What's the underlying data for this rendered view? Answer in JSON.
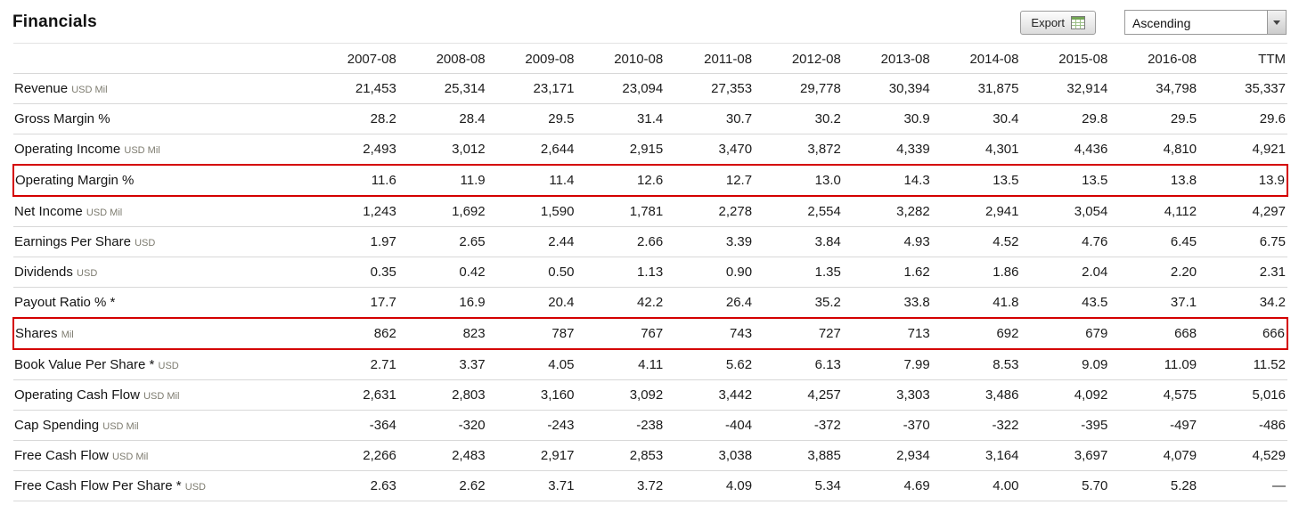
{
  "page": {
    "title": "Financials"
  },
  "toolbar": {
    "export_label": "Export",
    "sort_value": "Ascending"
  },
  "colors": {
    "highlight_border": "#d40000",
    "unit_text": "#7d7b6f",
    "row_divider": "#d8d8d8"
  },
  "table": {
    "columns": [
      "2007-08",
      "2008-08",
      "2009-08",
      "2010-08",
      "2011-08",
      "2012-08",
      "2013-08",
      "2014-08",
      "2015-08",
      "2016-08",
      "TTM"
    ],
    "rows": [
      {
        "label": "Revenue",
        "unit": "USD Mil",
        "highlighted": false,
        "values": [
          "21,453",
          "25,314",
          "23,171",
          "23,094",
          "27,353",
          "29,778",
          "30,394",
          "31,875",
          "32,914",
          "34,798",
          "35,337"
        ]
      },
      {
        "label": "Gross Margin %",
        "unit": "",
        "highlighted": false,
        "values": [
          "28.2",
          "28.4",
          "29.5",
          "31.4",
          "30.7",
          "30.2",
          "30.9",
          "30.4",
          "29.8",
          "29.5",
          "29.6"
        ]
      },
      {
        "label": "Operating Income",
        "unit": "USD Mil",
        "highlighted": false,
        "values": [
          "2,493",
          "3,012",
          "2,644",
          "2,915",
          "3,470",
          "3,872",
          "4,339",
          "4,301",
          "4,436",
          "4,810",
          "4,921"
        ]
      },
      {
        "label": "Operating Margin %",
        "unit": "",
        "highlighted": true,
        "values": [
          "11.6",
          "11.9",
          "11.4",
          "12.6",
          "12.7",
          "13.0",
          "14.3",
          "13.5",
          "13.5",
          "13.8",
          "13.9"
        ]
      },
      {
        "label": "Net Income",
        "unit": "USD Mil",
        "highlighted": false,
        "values": [
          "1,243",
          "1,692",
          "1,590",
          "1,781",
          "2,278",
          "2,554",
          "3,282",
          "2,941",
          "3,054",
          "4,112",
          "4,297"
        ]
      },
      {
        "label": "Earnings Per Share",
        "unit": "USD",
        "highlighted": false,
        "values": [
          "1.97",
          "2.65",
          "2.44",
          "2.66",
          "3.39",
          "3.84",
          "4.93",
          "4.52",
          "4.76",
          "6.45",
          "6.75"
        ]
      },
      {
        "label": "Dividends",
        "unit": "USD",
        "highlighted": false,
        "values": [
          "0.35",
          "0.42",
          "0.50",
          "1.13",
          "0.90",
          "1.35",
          "1.62",
          "1.86",
          "2.04",
          "2.20",
          "2.31"
        ]
      },
      {
        "label": "Payout Ratio % *",
        "unit": "",
        "highlighted": false,
        "values": [
          "17.7",
          "16.9",
          "20.4",
          "42.2",
          "26.4",
          "35.2",
          "33.8",
          "41.8",
          "43.5",
          "37.1",
          "34.2"
        ]
      },
      {
        "label": "Shares",
        "unit": "Mil",
        "highlighted": true,
        "values": [
          "862",
          "823",
          "787",
          "767",
          "743",
          "727",
          "713",
          "692",
          "679",
          "668",
          "666"
        ]
      },
      {
        "label": "Book Value Per Share *",
        "unit": "USD",
        "highlighted": false,
        "values": [
          "2.71",
          "3.37",
          "4.05",
          "4.11",
          "5.62",
          "6.13",
          "7.99",
          "8.53",
          "9.09",
          "11.09",
          "11.52"
        ]
      },
      {
        "label": "Operating Cash Flow",
        "unit": "USD Mil",
        "highlighted": false,
        "values": [
          "2,631",
          "2,803",
          "3,160",
          "3,092",
          "3,442",
          "4,257",
          "3,303",
          "3,486",
          "4,092",
          "4,575",
          "5,016"
        ]
      },
      {
        "label": "Cap Spending",
        "unit": "USD Mil",
        "highlighted": false,
        "values": [
          "-364",
          "-320",
          "-243",
          "-238",
          "-404",
          "-372",
          "-370",
          "-322",
          "-395",
          "-497",
          "-486"
        ]
      },
      {
        "label": "Free Cash Flow",
        "unit": "USD Mil",
        "highlighted": false,
        "values": [
          "2,266",
          "2,483",
          "2,917",
          "2,853",
          "3,038",
          "3,885",
          "2,934",
          "3,164",
          "3,697",
          "4,079",
          "4,529"
        ]
      },
      {
        "label": "Free Cash Flow Per Share *",
        "unit": "USD",
        "highlighted": false,
        "values": [
          "2.63",
          "2.62",
          "3.71",
          "3.72",
          "4.09",
          "5.34",
          "4.69",
          "4.00",
          "5.70",
          "5.28",
          "—"
        ]
      }
    ]
  }
}
